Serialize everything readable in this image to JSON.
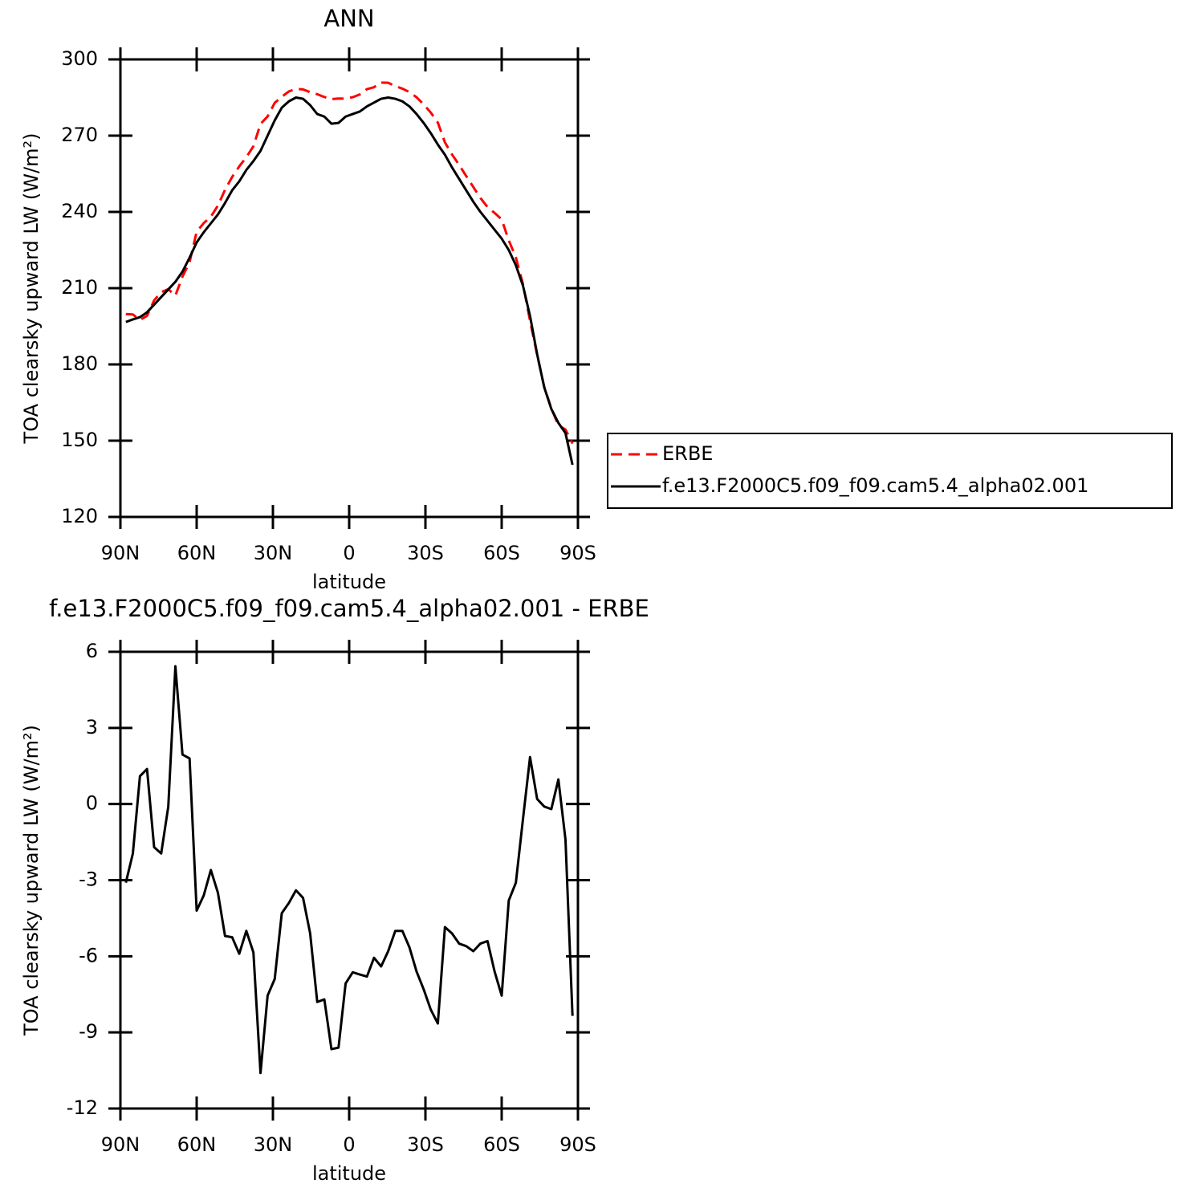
{
  "chart_data": [
    {
      "type": "line",
      "title": "ANN",
      "x_label": "latitude",
      "y_label": "TOA clearsky upward LW (W/m²)",
      "x": [
        87.86,
        85.1,
        82.31,
        79.53,
        76.74,
        73.95,
        71.16,
        68.37,
        65.58,
        62.79,
        60.0,
        57.21,
        54.42,
        51.63,
        48.84,
        46.04,
        43.25,
        40.46,
        37.67,
        34.88,
        32.09,
        29.3,
        26.51,
        23.72,
        20.93,
        18.14,
        15.35,
        12.56,
        9.77,
        6.98,
        4.19,
        1.4,
        -1.4,
        -4.19,
        -6.98,
        -9.77,
        -12.56,
        -15.35,
        -18.14,
        -20.93,
        -23.72,
        -26.51,
        -29.3,
        -32.09,
        -34.88,
        -37.67,
        -40.46,
        -43.25,
        -46.04,
        -48.84,
        -51.63,
        -54.42,
        -57.21,
        -60.0,
        -62.79,
        -65.58,
        -68.37,
        -71.16,
        -73.95,
        -76.74,
        -79.53,
        -82.31,
        -85.1,
        -87.86
      ],
      "series": [
        {
          "name": "ERBE",
          "color": "#ff0000",
          "dash": true,
          "values": [
            199.8,
            199.65,
            197.5,
            199.12,
            205.2,
            208.45,
            209.6,
            207.07,
            214.55,
            220.2,
            232.2,
            235.6,
            238.1,
            242.5,
            248.7,
            253.75,
            257.9,
            261.5,
            265.85,
            274.6,
            277.55,
            282.9,
            285.3,
            287.4,
            288.4,
            288.2,
            287.1,
            286.3,
            285.2,
            284.36,
            284.6,
            284.57,
            285.13,
            286.22,
            288.3,
            289.06,
            290.9,
            290.8,
            289.5,
            288.5,
            287.15,
            285.1,
            282.3,
            279.1,
            275.15,
            267.35,
            262.6,
            258.5,
            254.1,
            249.8,
            245.5,
            241.9,
            239.6,
            237.05,
            228.8,
            222.1,
            211.6,
            197.15,
            183.8,
            171.1,
            162.7,
            156.03,
            154.4,
            148.85
          ]
        },
        {
          "name": "f.e13.F2000C5.f09_f09.cam5.4_alpha02.001",
          "color": "#000000",
          "dash": false,
          "values": [
            196.7,
            197.7,
            198.6,
            200.5,
            203.5,
            206.5,
            209.5,
            212.5,
            216.5,
            222,
            228,
            232,
            235.5,
            239,
            243.5,
            248.5,
            252,
            256.5,
            260,
            264,
            270,
            276,
            281,
            283.5,
            285,
            284.5,
            282,
            278.5,
            277.5,
            274.7,
            275,
            277.5,
            278.5,
            279.5,
            281.5,
            283,
            284.5,
            285,
            284.5,
            283.5,
            281.5,
            278.5,
            275,
            271,
            266.5,
            262.5,
            257.5,
            253,
            248.5,
            244,
            240,
            236.5,
            233,
            229.5,
            225,
            219,
            211,
            199,
            184,
            171,
            162.5,
            157,
            153,
            140.5
          ]
        }
      ],
      "xlim": [
        90,
        -90
      ],
      "xticks": [
        {
          "value": 90,
          "label": "90N"
        },
        {
          "value": 60,
          "label": "60N"
        },
        {
          "value": 30,
          "label": "30N"
        },
        0,
        {
          "value": -30,
          "label": "30S"
        },
        {
          "value": -60,
          "label": "60S"
        },
        {
          "value": -90,
          "label": "90S"
        }
      ],
      "ylim": [
        120,
        300
      ],
      "yticks": [
        120,
        150,
        180,
        210,
        240,
        270,
        300
      ],
      "legend": "right"
    },
    {
      "type": "line",
      "title": "f.e13.F2000C5.f09_f09.cam5.4_alpha02.001 - ERBE",
      "x_label": "latitude",
      "y_label": "TOA clearsky upward LW (W/m²)",
      "x": [
        87.86,
        85.1,
        82.31,
        79.53,
        76.74,
        73.95,
        71.16,
        68.37,
        65.58,
        62.79,
        60.0,
        57.21,
        54.42,
        51.63,
        48.84,
        46.04,
        43.25,
        40.46,
        37.67,
        34.88,
        32.09,
        29.3,
        26.51,
        23.72,
        20.93,
        18.14,
        15.35,
        12.56,
        9.77,
        6.98,
        4.19,
        1.4,
        -1.4,
        -4.19,
        -6.98,
        -9.77,
        -12.56,
        -15.35,
        -18.14,
        -20.93,
        -23.72,
        -26.51,
        -29.3,
        -32.09,
        -34.88,
        -37.67,
        -40.46,
        -43.25,
        -46.04,
        -48.84,
        -51.63,
        -54.42,
        -57.21,
        -60.0,
        -62.79,
        -65.58,
        -68.37,
        -71.16,
        -73.95,
        -76.74,
        -79.53,
        -82.31,
        -85.1,
        -87.86
      ],
      "values": [
        -3.1,
        -1.95,
        1.1,
        1.38,
        -1.7,
        -1.95,
        -0.1,
        5.43,
        1.95,
        1.8,
        -4.2,
        -3.6,
        -2.6,
        -3.5,
        -5.2,
        -5.25,
        -5.9,
        -5.0,
        -5.85,
        -10.6,
        -7.55,
        -6.9,
        -4.3,
        -3.9,
        -3.4,
        -3.7,
        -5.1,
        -7.8,
        -7.7,
        -9.66,
        -9.6,
        -7.07,
        -6.63,
        -6.72,
        -6.8,
        -6.06,
        -6.4,
        -5.8,
        -5.0,
        -5.0,
        -5.65,
        -6.6,
        -7.3,
        -8.1,
        -8.65,
        -4.85,
        -5.1,
        -5.5,
        -5.6,
        -5.8,
        -5.5,
        -5.4,
        -6.6,
        -7.55,
        -3.8,
        -3.1,
        -0.6,
        1.85,
        0.2,
        -0.1,
        -0.2,
        0.97,
        -1.4,
        -8.35
      ],
      "color": "#000000",
      "xlim": [
        90,
        -90
      ],
      "xticks": [
        {
          "value": 90,
          "label": "90N"
        },
        {
          "value": 60,
          "label": "60N"
        },
        {
          "value": 30,
          "label": "30N"
        },
        0,
        {
          "value": -30,
          "label": "30S"
        },
        {
          "value": -60,
          "label": "60S"
        },
        {
          "value": -90,
          "label": "90S"
        }
      ],
      "ylim": [
        -12,
        6
      ],
      "yticks": [
        -12,
        -9,
        -6,
        -3,
        0,
        3,
        6
      ]
    }
  ]
}
